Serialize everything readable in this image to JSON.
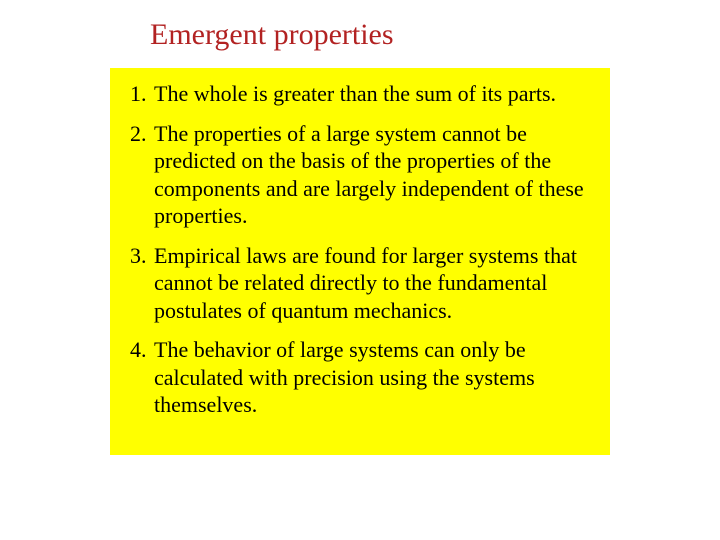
{
  "title": {
    "text": "Emergent properties",
    "color": "#b22222",
    "fontsize": 30
  },
  "box": {
    "background_color": "#ffff00",
    "text_color": "#000000",
    "fontsize": 22
  },
  "items": [
    "The whole is greater than the sum of its parts.",
    "The properties of a large system cannot be predicted on the basis of the properties of the components and are largely independent of these properties.",
    "Empirical laws are found for larger systems that cannot be related directly to the fundamental postulates of quantum mechanics.",
    "The behavior of large systems can only be calculated with precision using the systems themselves."
  ]
}
